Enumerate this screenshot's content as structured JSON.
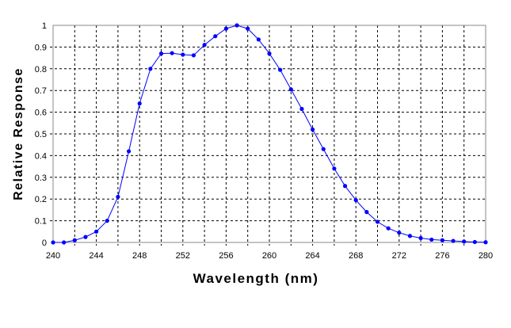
{
  "chart_data": {
    "type": "line",
    "title": "",
    "xlabel": "Wavelength (nm)",
    "ylabel": "Relative Response",
    "xlim": [
      240,
      280
    ],
    "ylim": [
      0,
      1
    ],
    "grid": true,
    "x_ticks": [
      "240",
      "244",
      "248",
      "252",
      "256",
      "260",
      "264",
      "268",
      "272",
      "276",
      "280"
    ],
    "y_ticks": [
      "0",
      "0.1",
      "0.2",
      "0.3",
      "0.4",
      "0.5",
      "0.6",
      "0.7",
      "0.8",
      "0.9",
      "1"
    ],
    "series": [
      {
        "name": "Relative Response",
        "color": "#0000ff",
        "x": [
          240,
          241,
          242,
          243,
          244,
          245,
          246,
          247,
          248,
          249,
          250,
          251,
          252,
          253,
          254,
          255,
          256,
          257,
          258,
          259,
          260,
          261,
          262,
          263,
          264,
          265,
          266,
          267,
          268,
          269,
          270,
          271,
          272,
          273,
          274,
          275,
          276,
          277,
          278,
          279,
          280
        ],
        "y": [
          0,
          0,
          0.01,
          0.025,
          0.05,
          0.1,
          0.21,
          0.42,
          0.64,
          0.8,
          0.87,
          0.872,
          0.865,
          0.862,
          0.91,
          0.95,
          0.985,
          1.0,
          0.985,
          0.935,
          0.87,
          0.795,
          0.705,
          0.615,
          0.52,
          0.43,
          0.34,
          0.26,
          0.195,
          0.14,
          0.095,
          0.065,
          0.045,
          0.03,
          0.02,
          0.013,
          0.01,
          0.007,
          0.004,
          0.002,
          0.001
        ]
      }
    ]
  }
}
